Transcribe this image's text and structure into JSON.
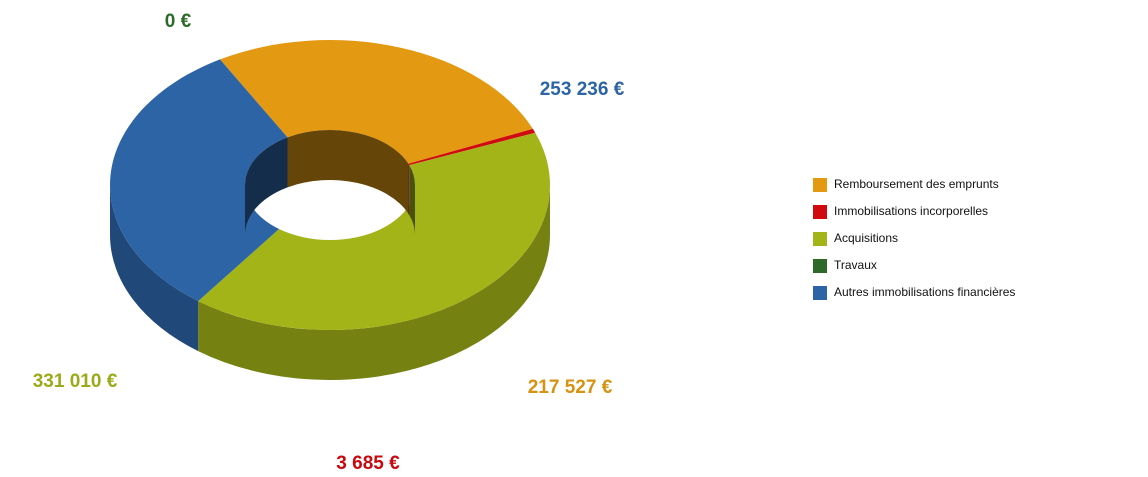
{
  "chart_data": {
    "type": "pie",
    "categories": [
      "Remboursement des emprunts",
      "Immobilisations incorporelles",
      "Acquisitions",
      "Travaux",
      "Autres immobilisations financières"
    ],
    "values": [
      217527,
      3685,
      331010,
      0,
      253236
    ],
    "value_labels": [
      "217 527 €",
      "3 685 €",
      "331 010 €",
      "0 €",
      "253 236 €"
    ],
    "colors": [
      "#e39a12",
      "#d10a10",
      "#a3b418",
      "#2d6a2a",
      "#2c64a6"
    ]
  }
}
